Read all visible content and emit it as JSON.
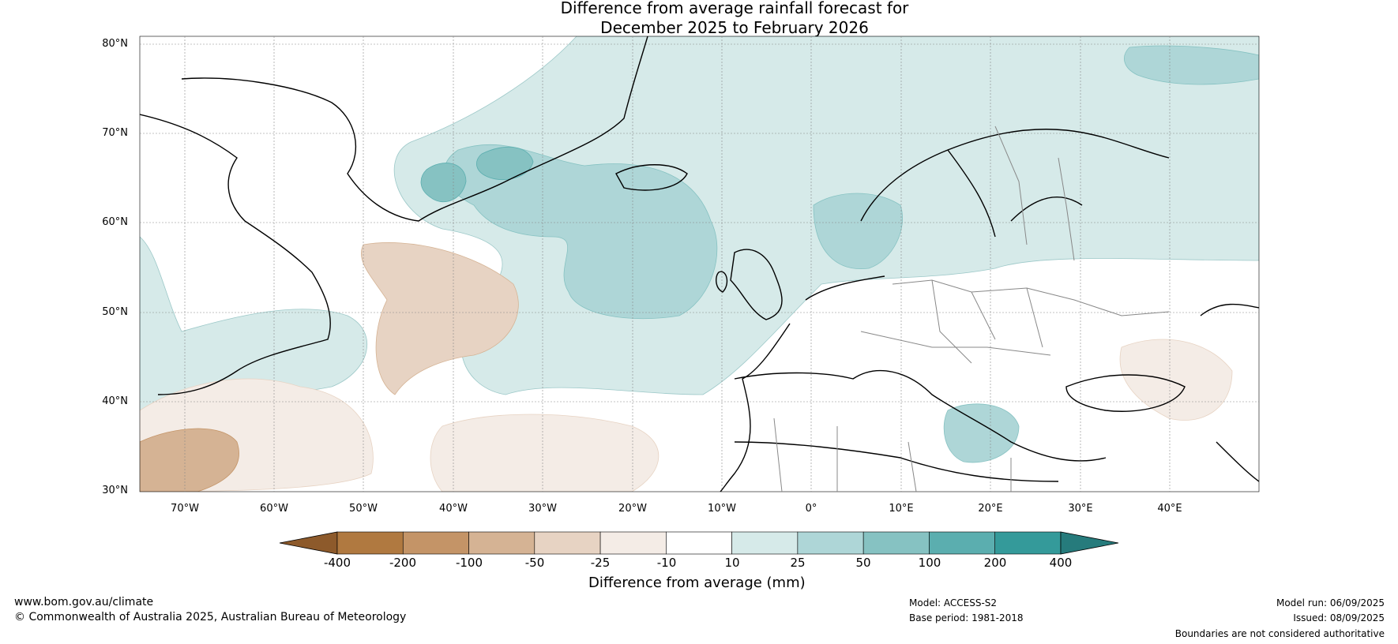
{
  "title": {
    "line1": "Difference from average rainfall forecast for",
    "line2": "December 2025 to February 2026"
  },
  "map": {
    "lat_labels": [
      "80°N",
      "70°N",
      "60°N",
      "50°N",
      "40°N",
      "30°N"
    ],
    "lon_labels": [
      "70°W",
      "60°W",
      "50°W",
      "40°W",
      "30°W",
      "20°W",
      "10°W",
      "0°",
      "10°E",
      "20°E",
      "30°E",
      "40°E"
    ]
  },
  "colorbar": {
    "title": "Difference from average (mm)",
    "ticks": [
      "-400",
      "-200",
      "-100",
      "-50",
      "-25",
      "-10",
      "10",
      "25",
      "50",
      "100",
      "200",
      "400"
    ],
    "colors": [
      "#8d5a2b",
      "#b07940",
      "#c49467",
      "#d5b394",
      "#e7d3c3",
      "#f4ece6",
      "#ffffff",
      "#d6eae9",
      "#aed6d7",
      "#86c2c2",
      "#5baeaf",
      "#349a9a",
      "#267b7c"
    ]
  },
  "footer": {
    "website": "www.bom.gov.au/climate",
    "copyright": "© Commonwealth of Australia 2025, Australian Bureau of Meteorology",
    "model": "Model: ACCESS-S2",
    "base_period": "Base period: 1981-2018",
    "model_run": "Model run: 06/09/2025",
    "issued": "Issued: 08/09/2025",
    "disclaimer": "Boundaries are not considered authoritative"
  }
}
